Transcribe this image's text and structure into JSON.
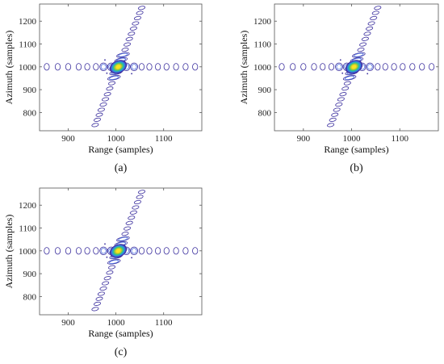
{
  "chart_data": [
    {
      "type": "contour",
      "panel_label": "(a)",
      "xlabel": "Range (samples)",
      "ylabel": "Azimuth (samples)",
      "xlim": [
        840,
        1180
      ],
      "ylim": [
        720,
        1275
      ],
      "xticks": [
        900,
        1000,
        1100
      ],
      "yticks": [
        800,
        900,
        1000,
        1100,
        1200
      ],
      "peak": [
        1005,
        1000
      ],
      "range_sidelobe_x": [
        855,
        878,
        900,
        922,
        940,
        958,
        974,
        990,
        1022,
        1038,
        1054,
        1070,
        1088,
        1106,
        1126,
        1146,
        1166
      ],
      "azimuth_sidelobe_y": [
        745,
        768,
        790,
        812,
        835,
        858,
        880,
        905,
        928,
        952,
        975,
        1030,
        1052,
        1075,
        1098,
        1122,
        1145,
        1168,
        1190,
        1213,
        1236,
        1258
      ]
    },
    {
      "type": "contour",
      "panel_label": "(b)",
      "xlabel": "Range (samples)",
      "ylabel": "Azimuth (samples)",
      "xlim": [
        840,
        1180
      ],
      "ylim": [
        720,
        1275
      ],
      "xticks": [
        900,
        1000,
        1100
      ],
      "yticks": [
        800,
        900,
        1000,
        1100,
        1200
      ],
      "peak": [
        1005,
        1000
      ],
      "range_sidelobe_x": [
        855,
        878,
        900,
        922,
        940,
        958,
        974,
        990,
        1022,
        1038,
        1054,
        1070,
        1088,
        1106,
        1126,
        1146,
        1166
      ],
      "azimuth_sidelobe_y": [
        745,
        768,
        790,
        812,
        835,
        858,
        880,
        905,
        928,
        952,
        975,
        1030,
        1052,
        1075,
        1098,
        1122,
        1145,
        1168,
        1190,
        1213,
        1236,
        1258
      ]
    },
    {
      "type": "contour",
      "panel_label": "(c)",
      "xlabel": "Range (samples)",
      "ylabel": "Azimuth (samples)",
      "xlim": [
        840,
        1180
      ],
      "ylim": [
        720,
        1275
      ],
      "xticks": [
        900,
        1000,
        1100
      ],
      "yticks": [
        800,
        900,
        1000,
        1100,
        1200
      ],
      "peak": [
        1005,
        1000
      ],
      "range_sidelobe_x": [
        855,
        878,
        900,
        922,
        940,
        958,
        974,
        990,
        1022,
        1038,
        1054,
        1070,
        1088,
        1106,
        1126,
        1146,
        1166
      ],
      "azimuth_sidelobe_y": [
        745,
        768,
        790,
        812,
        835,
        858,
        880,
        905,
        928,
        952,
        975,
        1030,
        1052,
        1075,
        1098,
        1122,
        1145,
        1168,
        1190,
        1213,
        1236,
        1258
      ]
    }
  ]
}
